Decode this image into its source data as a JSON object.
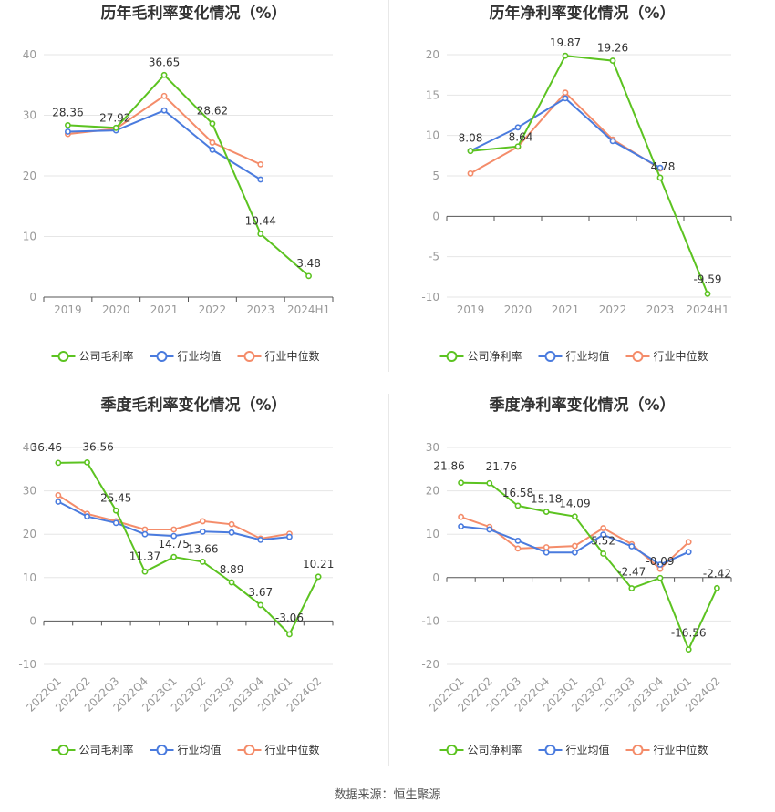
{
  "colors": {
    "company": "#5cc321",
    "industry_avg": "#4a7bde",
    "industry_median": "#f48c6a",
    "grid": "#e6e6e6",
    "axis": "#555555",
    "tick_text": "#999999",
    "title": "#333333",
    "label": "#333333"
  },
  "source_text": "数据来源：恒生聚源",
  "chart_data": [
    {
      "type": "line",
      "title": "历年毛利率变化情况（%）",
      "categories": [
        "2019",
        "2020",
        "2021",
        "2022",
        "2023",
        "2024H1"
      ],
      "ylim": [
        0,
        40
      ],
      "yticks": [
        0,
        10,
        20,
        30,
        40
      ],
      "rotate_x_labels": false,
      "label_series": 0,
      "series": [
        {
          "name": "公司毛利率",
          "color_key": "company",
          "values": [
            28.36,
            27.92,
            36.65,
            28.62,
            10.44,
            3.48
          ],
          "labels": [
            "28.36",
            "27.92",
            "36.65",
            "28.62",
            "10.44",
            "3.48"
          ]
        },
        {
          "name": "行业均值",
          "color_key": "industry_avg",
          "values": [
            27.3,
            27.5,
            30.8,
            24.3,
            19.4,
            null
          ]
        },
        {
          "name": "行业中位数",
          "color_key": "industry_median",
          "values": [
            26.9,
            27.8,
            33.2,
            25.5,
            21.9,
            null
          ]
        }
      ]
    },
    {
      "type": "line",
      "title": "历年净利率变化情况（%）",
      "categories": [
        "2019",
        "2020",
        "2021",
        "2022",
        "2023",
        "2024H1"
      ],
      "ylim": [
        -10,
        20
      ],
      "yticks": [
        -10,
        -5,
        0,
        5,
        10,
        15,
        20
      ],
      "rotate_x_labels": false,
      "label_series": 0,
      "series": [
        {
          "name": "公司净利率",
          "color_key": "company",
          "values": [
            8.08,
            8.64,
            19.87,
            19.26,
            4.78,
            -9.59
          ],
          "labels": [
            "8.08",
            "8.64",
            "19.87",
            "19.26",
            "4.78",
            "-9.59"
          ]
        },
        {
          "name": "行业均值",
          "color_key": "industry_avg",
          "values": [
            8.1,
            11.0,
            14.6,
            9.3,
            6.0,
            null
          ]
        },
        {
          "name": "行业中位数",
          "color_key": "industry_median",
          "values": [
            5.3,
            8.6,
            15.3,
            9.5,
            5.9,
            null
          ]
        }
      ]
    },
    {
      "type": "line",
      "title": "季度毛利率变化情况（%）",
      "categories": [
        "2022Q1",
        "2022Q2",
        "2022Q3",
        "2022Q4",
        "2023Q1",
        "2023Q2",
        "2023Q3",
        "2023Q4",
        "2024Q1",
        "2024Q2"
      ],
      "ylim": [
        -10,
        40
      ],
      "yticks": [
        -10,
        0,
        10,
        20,
        30,
        40
      ],
      "rotate_x_labels": true,
      "label_series": 0,
      "series": [
        {
          "name": "公司毛利率",
          "color_key": "company",
          "values": [
            36.46,
            36.56,
            25.45,
            11.37,
            14.75,
            13.66,
            8.89,
            3.67,
            -3.06,
            10.21
          ],
          "labels": [
            "36.46",
            "36.56",
            "25.45",
            "11.37",
            "14.75",
            "13.66",
            "8.89",
            "3.67",
            "-3.06",
            "10.21"
          ]
        },
        {
          "name": "行业均值",
          "color_key": "industry_avg",
          "values": [
            27.5,
            24.1,
            22.6,
            20.0,
            19.6,
            20.6,
            20.4,
            18.7,
            19.4,
            null
          ]
        },
        {
          "name": "行业中位数",
          "color_key": "industry_median",
          "values": [
            29.0,
            24.7,
            23.0,
            21.1,
            21.1,
            23.0,
            22.3,
            19.0,
            20.1,
            null
          ]
        }
      ]
    },
    {
      "type": "line",
      "title": "季度净利率变化情况（%）",
      "categories": [
        "2022Q1",
        "2022Q2",
        "2022Q3",
        "2022Q4",
        "2023Q1",
        "2023Q2",
        "2023Q3",
        "2023Q4",
        "2024Q1",
        "2024Q2"
      ],
      "ylim": [
        -20,
        30
      ],
      "yticks": [
        -20,
        -10,
        0,
        10,
        20,
        30
      ],
      "rotate_x_labels": true,
      "label_series": 0,
      "series": [
        {
          "name": "公司净利率",
          "color_key": "company",
          "values": [
            21.86,
            21.76,
            16.58,
            15.18,
            14.09,
            5.52,
            -2.47,
            -0.09,
            -16.56,
            -2.42
          ],
          "labels": [
            "21.86",
            "21.76",
            "16.58",
            "15.18",
            "14.09",
            "5.52",
            "-2.47",
            "-0.09",
            "-16.56",
            "-2.42"
          ]
        },
        {
          "name": "行业均值",
          "color_key": "industry_avg",
          "values": [
            11.8,
            11.1,
            8.5,
            5.8,
            5.8,
            9.9,
            7.2,
            3.0,
            5.9,
            null
          ]
        },
        {
          "name": "行业中位数",
          "color_key": "industry_median",
          "values": [
            14.0,
            11.7,
            6.7,
            7.0,
            7.3,
            11.4,
            7.7,
            2.0,
            8.2,
            null
          ]
        }
      ]
    }
  ]
}
